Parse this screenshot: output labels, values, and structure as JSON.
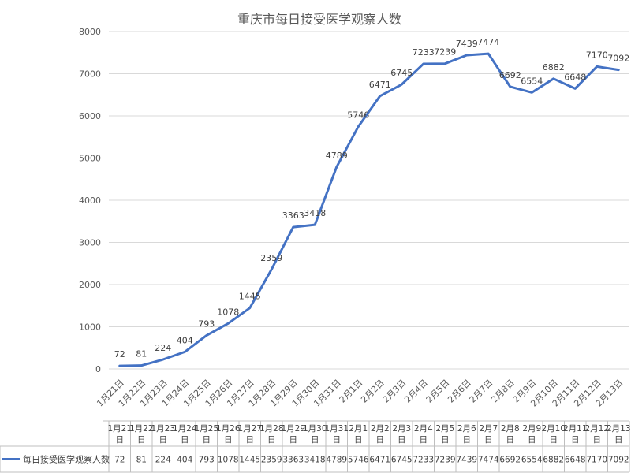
{
  "chart_data": {
    "type": "line",
    "title": "重庆市每日接受医学观察人数",
    "xlabel": "",
    "ylabel": "",
    "ylim": [
      0,
      8000
    ],
    "yticks": [
      0,
      1000,
      2000,
      3000,
      4000,
      5000,
      6000,
      7000,
      8000
    ],
    "grid": true,
    "legend": "bottom-left (in data table)",
    "color": "#4472c4",
    "categories": [
      "1月21日",
      "1月22日",
      "1月23日",
      "1月24日",
      "1月25日",
      "1月26日",
      "1月27日",
      "1月28日",
      "1月29日",
      "1月30日",
      "1月31日",
      "2月1日",
      "2月2日",
      "2月3日",
      "2月4日",
      "2月5日",
      "2月6日",
      "2月7日",
      "2月8日",
      "2月9日",
      "2月10日",
      "2月11日",
      "2月12日",
      "2月13日"
    ],
    "series": [
      {
        "name": "每日接受医学观察人数",
        "values": [
          72,
          81,
          224,
          404,
          793,
          1078,
          1445,
          2359,
          3363,
          3418,
          4789,
          5746,
          6471,
          6745,
          7233,
          7239,
          7439,
          7474,
          6692,
          6554,
          6882,
          6648,
          7170,
          7092
        ]
      }
    ]
  }
}
